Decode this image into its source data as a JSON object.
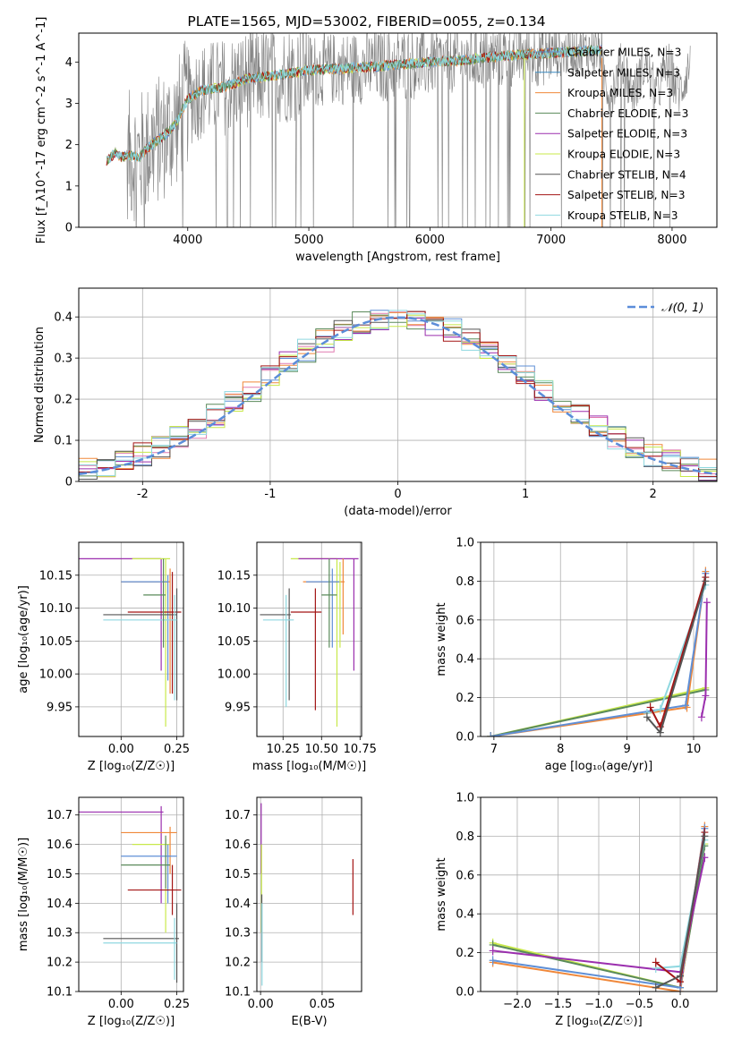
{
  "figure_title": "PLATE=1565, MJD=53002, FIBERID=0055, z=0.134",
  "colors": {
    "chabrier_miles": "#5f8fd6",
    "salpeter_miles": "#3b8bc2",
    "kroupa_miles": "#f0883a",
    "chabrier_elodie": "#5a8a5a",
    "salpeter_elodie": "#9b2fae",
    "kroupa_elodie": "#c8e84a",
    "chabrier_stelib": "#555555",
    "salpeter_stelib": "#a31515",
    "kroupa_stelib": "#8fd8e0",
    "spectrum": "#808080",
    "gaussian": "#5b8dd9",
    "grid": "#b0b0b0"
  },
  "chart_data": [
    {
      "id": "spectrum",
      "type": "line",
      "xlabel": "wavelength [Angstrom, rest frame]",
      "ylabel": "Flux [f_λ10^-17 erg cm^-2 s^-1 A^-1]",
      "xlim": [
        3100,
        8370
      ],
      "ylim": [
        0,
        4.7
      ],
      "xticks": [
        4000,
        5000,
        6000,
        7000,
        8000
      ],
      "yticks": [
        0,
        1,
        2,
        3,
        4
      ],
      "grid": false,
      "legend_position": "top-right",
      "legend": [
        {
          "label": "Chabrier MILES, N_SSP=3",
          "key": "chabrier_miles"
        },
        {
          "label": "Salpeter MILES, N_SSP=3",
          "key": "salpeter_miles"
        },
        {
          "label": "Kroupa MILES, N_SSP=3",
          "key": "kroupa_miles"
        },
        {
          "label": "Chabrier ELODIE, N_SSP=3",
          "key": "chabrier_elodie"
        },
        {
          "label": "Salpeter ELODIE, N_SSP=3",
          "key": "salpeter_elodie"
        },
        {
          "label": "Kroupa ELODIE, N_SSP=3",
          "key": "kroupa_elodie"
        },
        {
          "label": "Chabrier STELIB, N_SSP=4",
          "key": "chabrier_stelib"
        },
        {
          "label": "Salpeter STELIB, N_SSP=3",
          "key": "salpeter_stelib"
        },
        {
          "label": "Kroupa STELIB, N_SSP=3",
          "key": "kroupa_stelib"
        }
      ],
      "model_continuum": {
        "x": [
          3330,
          3400,
          3450,
          3500,
          3600,
          3700,
          3800,
          3900,
          4000,
          4100,
          4300,
          4500,
          4800,
          5000,
          5300,
          5600,
          6000,
          6300,
          6600,
          6900,
          7200,
          7420
        ],
        "y": [
          1.6,
          1.8,
          1.7,
          1.75,
          1.7,
          2.0,
          2.2,
          2.5,
          3.1,
          3.3,
          3.4,
          3.6,
          3.7,
          3.8,
          3.85,
          3.9,
          4.0,
          4.05,
          4.15,
          4.2,
          4.25,
          4.3
        ]
      }
    },
    {
      "id": "residuals",
      "type": "line",
      "xlabel": "(data-model)/error",
      "ylabel": "Normed distribution",
      "xlim": [
        -2.5,
        2.5
      ],
      "ylim": [
        0,
        0.47
      ],
      "xticks": [
        -2,
        -1,
        0,
        1,
        2
      ],
      "yticks": [
        0.0,
        0.1,
        0.2,
        0.3,
        0.4
      ],
      "grid": true,
      "legend_position": "top-right",
      "legend": [
        {
          "label": "𝒩(0, 1)",
          "key": "gaussian"
        }
      ],
      "hist_bins": [
        -2.5,
        2.5,
        35
      ],
      "series": [
        {
          "key": "chabrier_miles",
          "values": [
            0.02,
            0.03,
            0.02,
            0.04,
            0.06,
            0.07,
            0.09,
            0.11,
            0.12,
            0.15,
            0.18,
            0.22,
            0.25,
            0.28,
            0.31,
            0.33,
            0.35,
            0.37,
            0.38,
            0.39,
            0.38,
            0.37,
            0.34,
            0.31,
            0.28,
            0.25,
            0.22,
            0.18,
            0.15,
            0.12,
            0.1,
            0.08,
            0.06,
            0.04,
            0.03
          ]
        }
      ]
    },
    {
      "id": "z_age",
      "type": "scatter",
      "xlabel": "Z [log₁₀(Z/Z☉)]",
      "ylabel": "age  [log₁₀(age/yr)]",
      "xlim": [
        -0.19,
        0.28
      ],
      "ylim": [
        9.905,
        10.2
      ],
      "xticks": [
        0.0,
        0.25
      ],
      "xtick_labels": [
        "0.00",
        "0.25"
      ],
      "yticks": [
        9.95,
        10.0,
        10.05,
        10.1,
        10.15
      ],
      "ytick_labels": [
        "9.95",
        "10.00",
        "10.05",
        "10.10",
        "10.15"
      ],
      "grid": true
    },
    {
      "id": "mass_age",
      "type": "scatter",
      "xlabel": "mass [log₁₀(M/M☉)]",
      "ylabel": "",
      "xlim": [
        10.08,
        10.76
      ],
      "ylim": [
        9.905,
        10.2
      ],
      "xticks": [
        10.25,
        10.5,
        10.75
      ],
      "xtick_labels": [
        "10.25",
        "10.50",
        "10.75"
      ],
      "yticks": [
        9.95,
        10.0,
        10.05,
        10.1,
        10.15
      ],
      "ytick_labels": [
        "9.95",
        "10.00",
        "10.05",
        "10.10",
        "10.15"
      ],
      "grid": true
    },
    {
      "id": "age_weight",
      "type": "line",
      "xlabel": "age  [log₁₀(age/yr)]",
      "ylabel": "mass weight",
      "xlim": [
        6.8,
        10.35
      ],
      "ylim": [
        0,
        1.0
      ],
      "xticks": [
        7,
        8,
        9,
        10
      ],
      "xtick_labels": [
        "7",
        "8",
        "9",
        "10"
      ],
      "yticks": [
        0,
        0.2,
        0.4,
        0.6,
        0.8,
        1.0
      ],
      "ytick_labels": [
        "0.0",
        "0.2",
        "0.4",
        "0.6",
        "0.8",
        "1.0"
      ],
      "grid": true,
      "series": [
        {
          "key": "kroupa_elodie",
          "x": [
            6.95,
            10.18
          ],
          "y": [
            0.0,
            0.25
          ]
        },
        {
          "key": "chabrier_elodie",
          "x": [
            6.95,
            10.18
          ],
          "y": [
            0.0,
            0.24
          ]
        },
        {
          "key": "kroupa_miles",
          "x": [
            6.95,
            9.9,
            10.18
          ],
          "y": [
            0.0,
            0.15,
            0.85
          ]
        },
        {
          "key": "chabrier_miles",
          "x": [
            6.95,
            9.88,
            10.18
          ],
          "y": [
            0.0,
            0.16,
            0.84
          ]
        },
        {
          "key": "kroupa_stelib",
          "x": [
            9.3,
            9.5,
            10.18
          ],
          "y": [
            0.12,
            0.14,
            0.78
          ]
        },
        {
          "key": "salpeter_stelib",
          "x": [
            9.35,
            9.5,
            10.18
          ],
          "y": [
            0.15,
            0.05,
            0.82
          ]
        },
        {
          "key": "chabrier_stelib",
          "x": [
            9.3,
            9.5,
            10.18
          ],
          "y": [
            0.1,
            0.02,
            0.8
          ]
        },
        {
          "key": "salpeter_elodie",
          "x": [
            10.12,
            10.18,
            10.2
          ],
          "y": [
            0.1,
            0.21,
            0.69
          ]
        }
      ]
    },
    {
      "id": "z_mass",
      "type": "scatter",
      "xlabel": "Z [log₁₀(Z/Z☉)]",
      "ylabel": "mass [log₁₀(M/M☉)]",
      "xlim": [
        -0.19,
        0.28
      ],
      "ylim": [
        10.1,
        10.76
      ],
      "xticks": [
        0.0,
        0.25
      ],
      "xtick_labels": [
        "0.00",
        "0.25"
      ],
      "yticks": [
        10.1,
        10.2,
        10.3,
        10.4,
        10.5,
        10.6,
        10.7
      ],
      "ytick_labels": [
        "10.1",
        "10.2",
        "10.3",
        "10.4",
        "10.5",
        "10.6",
        "10.7"
      ],
      "grid": true
    },
    {
      "id": "ebv_mass",
      "type": "scatter",
      "xlabel": "E(B-V)",
      "ylabel": "",
      "xlim": [
        -0.003,
        0.082
      ],
      "ylim": [
        10.1,
        10.76
      ],
      "xticks": [
        0.0,
        0.05
      ],
      "xtick_labels": [
        "0.00",
        "0.05"
      ],
      "yticks": [
        10.1,
        10.2,
        10.3,
        10.4,
        10.5,
        10.6,
        10.7
      ],
      "ytick_labels": [
        "10.1",
        "10.2",
        "10.3",
        "10.4",
        "10.5",
        "10.6",
        "10.7"
      ],
      "grid": true
    },
    {
      "id": "z_weight",
      "type": "line",
      "xlabel": "Z [log₁₀(Z/Z☉)]",
      "ylabel": "mass weight",
      "xlim": [
        -2.45,
        0.45
      ],
      "ylim": [
        0,
        1.0
      ],
      "xticks": [
        -2.0,
        -1.5,
        -1.0,
        -0.5,
        0.0
      ],
      "xtick_labels": [
        "−2.0",
        "−1.5",
        "−1.0",
        "−0.5",
        "0.0"
      ],
      "yticks": [
        0,
        0.2,
        0.4,
        0.6,
        0.8,
        1.0
      ],
      "ytick_labels": [
        "0.0",
        "0.2",
        "0.4",
        "0.6",
        "0.8",
        "1.0"
      ],
      "grid": true,
      "series": [
        {
          "key": "kroupa_elodie",
          "x": [
            -2.3,
            0.0,
            0.3
          ],
          "y": [
            0.25,
            0.02,
            0.76
          ]
        },
        {
          "key": "chabrier_elodie",
          "x": [
            -2.3,
            0.0,
            0.3
          ],
          "y": [
            0.24,
            0.02,
            0.75
          ]
        },
        {
          "key": "kroupa_miles",
          "x": [
            -2.3,
            0.0,
            0.3
          ],
          "y": [
            0.15,
            0.0,
            0.85
          ]
        },
        {
          "key": "chabrier_miles",
          "x": [
            -2.3,
            0.0,
            0.3
          ],
          "y": [
            0.16,
            0.02,
            0.84
          ]
        },
        {
          "key": "salpeter_elodie",
          "x": [
            -2.3,
            0.0,
            0.3
          ],
          "y": [
            0.21,
            0.1,
            0.69
          ]
        },
        {
          "key": "kroupa_stelib",
          "x": [
            -0.3,
            0.0,
            0.3
          ],
          "y": [
            0.12,
            0.13,
            0.78
          ]
        },
        {
          "key": "salpeter_stelib",
          "x": [
            -0.3,
            0.0,
            0.3
          ],
          "y": [
            0.15,
            0.05,
            0.82
          ]
        },
        {
          "key": "chabrier_stelib",
          "x": [
            -0.3,
            0.0,
            0.3
          ],
          "y": [
            0.02,
            0.08,
            0.8
          ]
        }
      ]
    }
  ]
}
